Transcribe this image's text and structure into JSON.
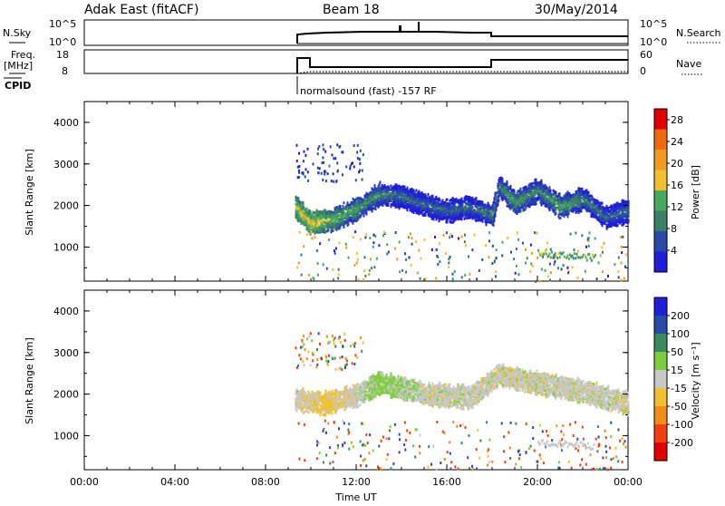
{
  "header": {
    "title": "Adak East (fitACF)",
    "beam": "Beam 18",
    "date": "30/May/2014"
  },
  "top_panels": {
    "nsky_label": "N.Sky",
    "nsearch_label": "N.Search",
    "left_ticks": [
      "10^5",
      "10^0"
    ],
    "right_ticks": [
      "10^5",
      "10^0"
    ],
    "freq_label_1": "Freq.",
    "freq_label_2": "[MHz]",
    "freq_ticks": [
      "18",
      "8"
    ],
    "nave_label": "Nave",
    "nave_ticks": [
      "60",
      "0"
    ],
    "cpid_label": "CPID",
    "cpid_text": "normalsound (fast) -157 RF"
  },
  "colors": {
    "power": [
      "#1f1fd8",
      "#2a4aa8",
      "#3a8068",
      "#48a860",
      "#f0c030",
      "#f09a20",
      "#f06a10",
      "#e00000"
    ],
    "velocity": [
      "#e00000",
      "#f04010",
      "#f08c18",
      "#f0c030",
      "#c8c8c8",
      "#80cc40",
      "#3a8a60",
      "#2a4aa8",
      "#1f1fd8"
    ]
  },
  "chart_data": [
    {
      "type": "heatmap",
      "title": "",
      "xlabel": "",
      "ylabel": "Slant Range [km]",
      "x_ticks": [
        "00:00",
        "04:00",
        "08:00",
        "12:00",
        "16:00",
        "20:00",
        "00:00"
      ],
      "y_ticks": [
        "1000",
        "2000",
        "3000",
        "4000"
      ],
      "xlim": [
        0,
        24
      ],
      "ylim": [
        180,
        4500
      ],
      "colorbar_label": "Power [dB]",
      "colorbar_ticks": [
        "4",
        "8",
        "12",
        "16",
        "20",
        "24",
        "28"
      ],
      "colorbar_range": [
        0,
        30
      ],
      "data_start_hour": 9.3,
      "main_echo_band": [
        {
          "t": 9.3,
          "range_km": 2000,
          "power_db": 16
        },
        {
          "t": 10.0,
          "range_km": 1600,
          "power_db": 18
        },
        {
          "t": 11.0,
          "range_km": 1700,
          "power_db": 14
        },
        {
          "t": 12.0,
          "range_km": 1950,
          "power_db": 12
        },
        {
          "t": 13.0,
          "range_km": 2300,
          "power_db": 10
        },
        {
          "t": 14.0,
          "range_km": 2250,
          "power_db": 8
        },
        {
          "t": 15.0,
          "range_km": 2050,
          "power_db": 8
        },
        {
          "t": 16.0,
          "range_km": 1900,
          "power_db": 8
        },
        {
          "t": 17.0,
          "range_km": 2000,
          "power_db": 8
        },
        {
          "t": 18.0,
          "range_km": 1800,
          "power_db": 10
        },
        {
          "t": 18.3,
          "range_km": 2500,
          "power_db": 10
        },
        {
          "t": 19.0,
          "range_km": 2100,
          "power_db": 12
        },
        {
          "t": 20.0,
          "range_km": 2400,
          "power_db": 10
        },
        {
          "t": 21.0,
          "range_km": 2000,
          "power_db": 12
        },
        {
          "t": 22.0,
          "range_km": 2200,
          "power_db": 10
        },
        {
          "t": 23.0,
          "range_km": 1750,
          "power_db": 8
        },
        {
          "t": 24.0,
          "range_km": 1900,
          "power_db": 8
        }
      ]
    },
    {
      "type": "heatmap",
      "title": "",
      "xlabel": "Time UT",
      "ylabel": "Slant Range [km]",
      "x_ticks": [
        "00:00",
        "04:00",
        "08:00",
        "12:00",
        "16:00",
        "20:00",
        "00:00"
      ],
      "y_ticks": [
        "1000",
        "2000",
        "3000",
        "4000"
      ],
      "xlim": [
        0,
        24
      ],
      "ylim": [
        180,
        4500
      ],
      "colorbar_label": "Velocity [m s⁻¹]",
      "colorbar_ticks": [
        "200",
        "100",
        "50",
        "15",
        "-15",
        "-50",
        "-100",
        "-200"
      ],
      "colorbar_range": [
        -250,
        250
      ],
      "main_echo_band": [
        {
          "t": 9.3,
          "range_km": 1900,
          "velocity": 0
        },
        {
          "t": 10.5,
          "range_km": 1800,
          "velocity": -30
        },
        {
          "t": 12.0,
          "range_km": 2000,
          "velocity": 0
        },
        {
          "t": 13.0,
          "range_km": 2300,
          "velocity": 30
        },
        {
          "t": 15.0,
          "range_km": 2050,
          "velocity": 0
        },
        {
          "t": 17.0,
          "range_km": 1950,
          "velocity": 0
        },
        {
          "t": 18.3,
          "range_km": 2500,
          "velocity": 0
        },
        {
          "t": 20.0,
          "range_km": 2300,
          "velocity": 0
        },
        {
          "t": 22.0,
          "range_km": 2100,
          "velocity": 0
        },
        {
          "t": 24.0,
          "range_km": 1800,
          "velocity": 0
        }
      ]
    }
  ]
}
